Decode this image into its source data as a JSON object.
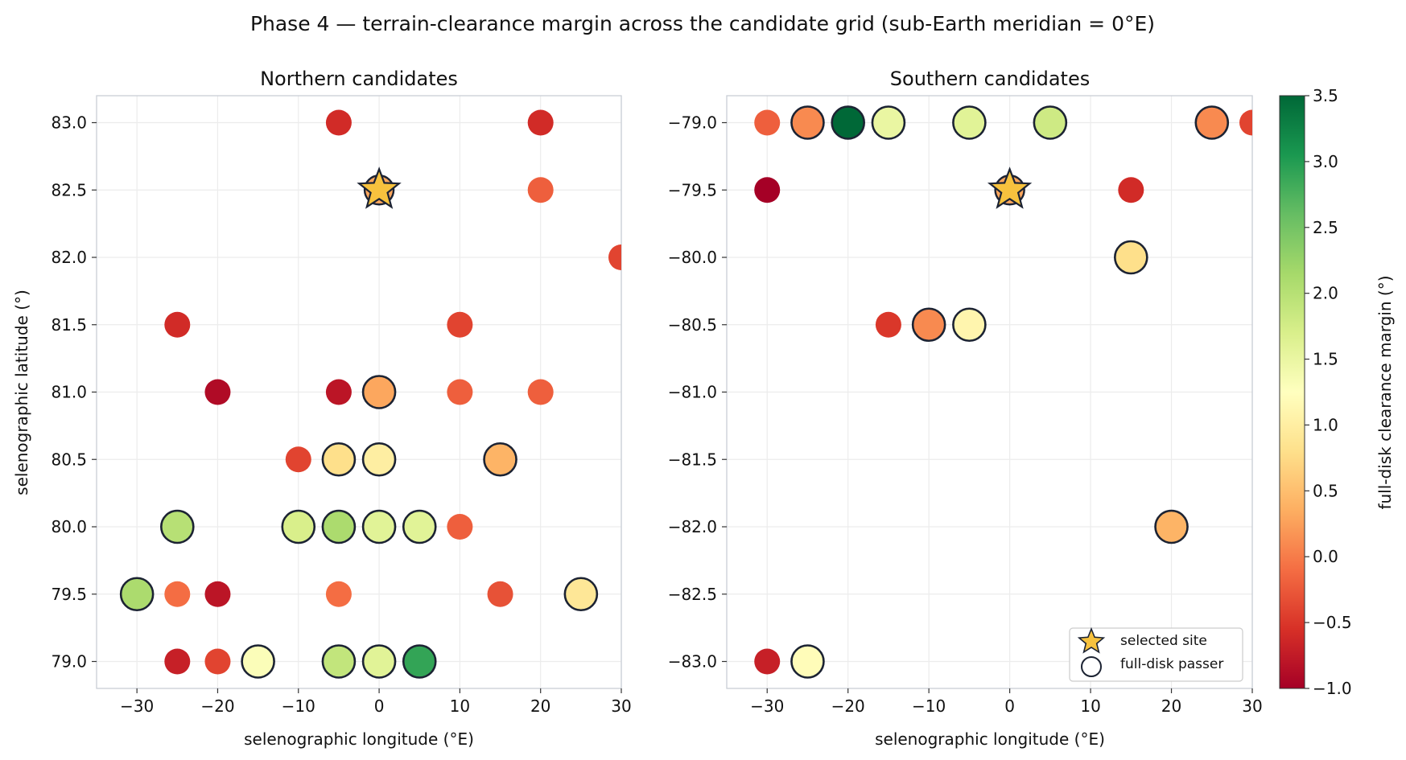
{
  "figure": {
    "title": "Phase 4 — terrain-clearance margin across the candidate grid (sub-Earth meridian = 0°E)"
  },
  "colorbar": {
    "label": "full-disk clearance margin  (°)",
    "range": [
      -1.0,
      3.5
    ],
    "ticks": [
      "3.5",
      "3.0",
      "2.5",
      "2.0",
      "1.5",
      "1.0",
      "0.5",
      "0.0",
      "−0.5",
      "−1.0"
    ],
    "tick_values": [
      3.5,
      3.0,
      2.5,
      2.0,
      1.5,
      1.0,
      0.5,
      0.0,
      -0.5,
      -1.0
    ],
    "colormap": "RdYlGn"
  },
  "legend": {
    "selected_label": "selected site",
    "passer_label": "full-disk passer",
    "placement": "lower-right of southern panel",
    "star_color": "#f7c23e"
  },
  "chart_data": [
    {
      "type": "scatter",
      "title": "Northern candidates",
      "xlabel": "selenographic longitude  (°E)",
      "ylabel": "selenographic latitude  (°)",
      "xlim": [
        -35,
        30
      ],
      "ylim": [
        78.8,
        83.2
      ],
      "xticks": [
        -30,
        -20,
        -10,
        0,
        10,
        20,
        30
      ],
      "xtick_labels": [
        "−30",
        "−20",
        "−10",
        "0",
        "10",
        "20",
        "30"
      ],
      "yticks": [
        79.0,
        79.5,
        80.0,
        80.5,
        81.0,
        81.5,
        82.0,
        82.5,
        83.0
      ],
      "ytick_labels": [
        "79.0",
        "79.5",
        "80.0",
        "80.5",
        "81.0",
        "81.5",
        "82.0",
        "82.5",
        "83.0"
      ],
      "grid": true,
      "selected": {
        "lon": 0,
        "lat": 82.5,
        "margin": 0.3
      },
      "points": [
        {
          "lon": -5,
          "lat": 83.0,
          "margin": -0.6,
          "passer": false
        },
        {
          "lon": 20,
          "lat": 83.0,
          "margin": -0.6,
          "passer": false
        },
        {
          "lon": 20,
          "lat": 82.5,
          "margin": -0.2,
          "passer": false
        },
        {
          "lon": 30,
          "lat": 82.0,
          "margin": -0.4,
          "passer": false
        },
        {
          "lon": -25,
          "lat": 81.5,
          "margin": -0.6,
          "passer": false
        },
        {
          "lon": 10,
          "lat": 81.5,
          "margin": -0.4,
          "passer": false
        },
        {
          "lon": -20,
          "lat": 81.0,
          "margin": -0.9,
          "passer": false
        },
        {
          "lon": -5,
          "lat": 81.0,
          "margin": -0.8,
          "passer": false
        },
        {
          "lon": 0,
          "lat": 81.0,
          "margin": 0.3,
          "passer": true
        },
        {
          "lon": 10,
          "lat": 81.0,
          "margin": -0.2,
          "passer": false
        },
        {
          "lon": 20,
          "lat": 81.0,
          "margin": -0.2,
          "passer": false
        },
        {
          "lon": -10,
          "lat": 80.5,
          "margin": -0.4,
          "passer": false
        },
        {
          "lon": -5,
          "lat": 80.5,
          "margin": 0.8,
          "passer": true
        },
        {
          "lon": 0,
          "lat": 80.5,
          "margin": 1.0,
          "passer": true
        },
        {
          "lon": 15,
          "lat": 80.5,
          "margin": 0.4,
          "passer": true
        },
        {
          "lon": -25,
          "lat": 80.0,
          "margin": 2.0,
          "passer": true
        },
        {
          "lon": -10,
          "lat": 80.0,
          "margin": 1.7,
          "passer": true
        },
        {
          "lon": -5,
          "lat": 80.0,
          "margin": 2.1,
          "passer": true
        },
        {
          "lon": 0,
          "lat": 80.0,
          "margin": 1.6,
          "passer": true
        },
        {
          "lon": 5,
          "lat": 80.0,
          "margin": 1.6,
          "passer": true
        },
        {
          "lon": 10,
          "lat": 80.0,
          "margin": -0.2,
          "passer": false
        },
        {
          "lon": -30,
          "lat": 79.5,
          "margin": 2.1,
          "passer": true
        },
        {
          "lon": -25,
          "lat": 79.5,
          "margin": -0.1,
          "passer": false
        },
        {
          "lon": -20,
          "lat": 79.5,
          "margin": -0.8,
          "passer": false
        },
        {
          "lon": -5,
          "lat": 79.5,
          "margin": -0.1,
          "passer": false
        },
        {
          "lon": 15,
          "lat": 79.5,
          "margin": -0.3,
          "passer": false
        },
        {
          "lon": 25,
          "lat": 79.5,
          "margin": 0.9,
          "passer": true
        },
        {
          "lon": -25,
          "lat": 79.0,
          "margin": -0.7,
          "passer": false
        },
        {
          "lon": -20,
          "lat": 79.0,
          "margin": -0.4,
          "passer": false
        },
        {
          "lon": -15,
          "lat": 79.0,
          "margin": 1.3,
          "passer": true
        },
        {
          "lon": -5,
          "lat": 79.0,
          "margin": 1.9,
          "passer": true
        },
        {
          "lon": 0,
          "lat": 79.0,
          "margin": 1.6,
          "passer": true
        },
        {
          "lon": 5,
          "lat": 79.0,
          "margin": 2.9,
          "passer": true
        }
      ]
    },
    {
      "type": "scatter",
      "title": "Southern candidates",
      "xlabel": "selenographic longitude  (°E)",
      "ylabel": "",
      "xlim": [
        -35,
        30
      ],
      "ylim": [
        -83.2,
        -78.8
      ],
      "xticks": [
        -30,
        -20,
        -10,
        0,
        10,
        20,
        30
      ],
      "xtick_labels": [
        "−30",
        "−20",
        "−10",
        "0",
        "10",
        "20",
        "30"
      ],
      "yticks": [
        -79.0,
        -79.5,
        -80.0,
        -80.5,
        -81.0,
        -81.5,
        -82.0,
        -82.5,
        -83.0
      ],
      "ytick_labels": [
        "−79.0",
        "−79.5",
        "−80.0",
        "−80.5",
        "−81.0",
        "−81.5",
        "−82.0",
        "−82.5",
        "−83.0"
      ],
      "grid": true,
      "selected": {
        "lon": 0,
        "lat": -79.5,
        "margin": 0.3
      },
      "points": [
        {
          "lon": -30,
          "lat": -79.0,
          "margin": -0.2,
          "passer": false
        },
        {
          "lon": -25,
          "lat": -79.0,
          "margin": 0.1,
          "passer": true
        },
        {
          "lon": -20,
          "lat": -79.0,
          "margin": 3.5,
          "passer": true
        },
        {
          "lon": -15,
          "lat": -79.0,
          "margin": 1.5,
          "passer": true
        },
        {
          "lon": -5,
          "lat": -79.0,
          "margin": 1.6,
          "passer": true
        },
        {
          "lon": 5,
          "lat": -79.0,
          "margin": 1.8,
          "passer": true
        },
        {
          "lon": 25,
          "lat": -79.0,
          "margin": 0.1,
          "passer": true
        },
        {
          "lon": 30,
          "lat": -79.0,
          "margin": -0.4,
          "passer": false
        },
        {
          "lon": -30,
          "lat": -79.5,
          "margin": -1.0,
          "passer": false
        },
        {
          "lon": 15,
          "lat": -79.5,
          "margin": -0.6,
          "passer": false
        },
        {
          "lon": 15,
          "lat": -80.0,
          "margin": 0.8,
          "passer": true
        },
        {
          "lon": -15,
          "lat": -80.5,
          "margin": -0.5,
          "passer": false
        },
        {
          "lon": -10,
          "lat": -80.5,
          "margin": 0.1,
          "passer": true
        },
        {
          "lon": -5,
          "lat": -80.5,
          "margin": 1.1,
          "passer": true
        },
        {
          "lon": 20,
          "lat": -82.0,
          "margin": 0.4,
          "passer": true
        },
        {
          "lon": -30,
          "lat": -83.0,
          "margin": -0.7,
          "passer": false
        },
        {
          "lon": -25,
          "lat": -83.0,
          "margin": 1.2,
          "passer": true
        }
      ]
    }
  ]
}
